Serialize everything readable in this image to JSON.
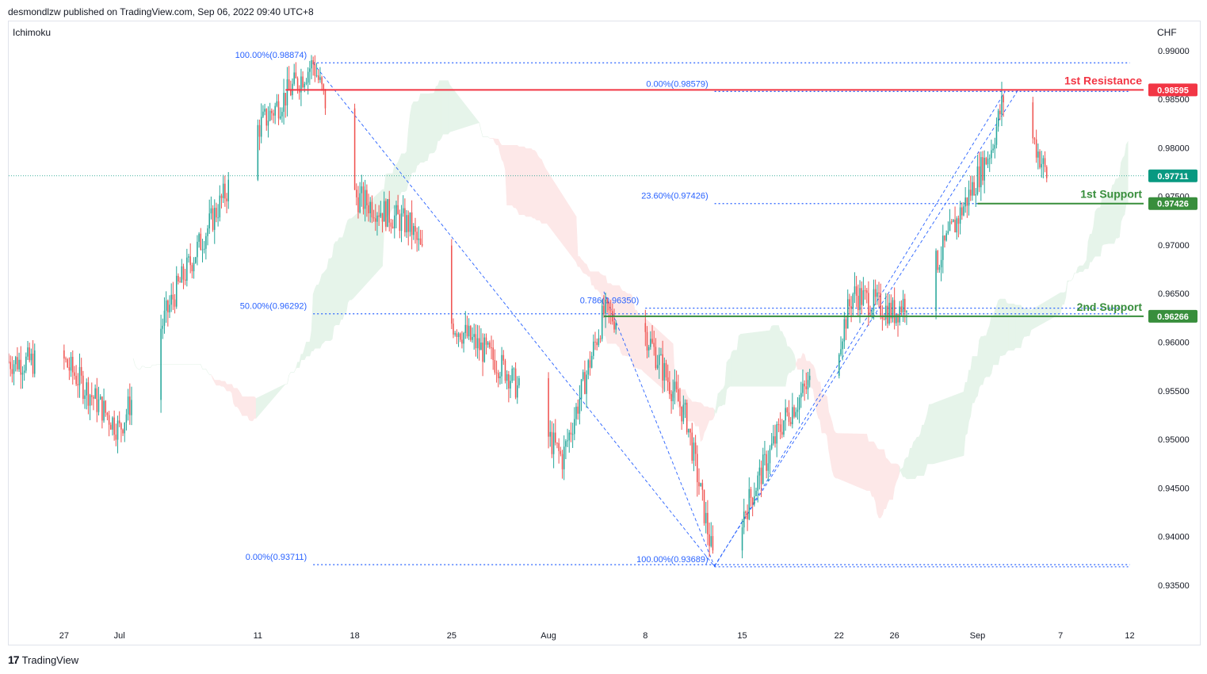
{
  "header": {
    "publisher_line": "desmondlzw published on TradingView.com, Sep 06, 2022 09:40 UTC+8",
    "indicator": "Ichimoku",
    "currency": "CHF"
  },
  "footer": {
    "brand": "TradingView",
    "logo_glyph": "17"
  },
  "colors": {
    "bull": "#26a69a",
    "bear": "#ef5350",
    "resistance": "#f23645",
    "support": "#388e3c",
    "fib": "#2962ff",
    "cloud_bull": "#e6f4ea",
    "cloud_bear": "#fde8e8",
    "price_label": "#089981"
  },
  "chart_data": {
    "type": "candlestick",
    "y_axis": {
      "range": [
        0.931,
        0.993
      ],
      "ticks": [
        "0.99000",
        "0.98500",
        "0.98000",
        "0.97500",
        "0.97000",
        "0.96500",
        "0.96000",
        "0.95500",
        "0.95000",
        "0.94500",
        "0.94000",
        "0.93500"
      ],
      "tick_values": [
        0.99,
        0.985,
        0.98,
        0.975,
        0.97,
        0.965,
        0.96,
        0.955,
        0.95,
        0.945,
        0.94,
        0.935
      ]
    },
    "x_axis": {
      "labels": [
        "27",
        "Jul",
        "11",
        "18",
        "25",
        "Aug",
        "8",
        "15",
        "22",
        "26",
        "Sep",
        "7",
        "12"
      ],
      "label_dates": [
        "2022-06-27",
        "2022-07-01",
        "2022-07-11",
        "2022-07-18",
        "2022-07-25",
        "2022-08-01",
        "2022-08-08",
        "2022-08-15",
        "2022-08-22",
        "2022-08-26",
        "2022-09-01",
        "2022-09-07",
        "2022-09-12"
      ],
      "range": [
        "2022-06-23",
        "2022-09-13"
      ]
    },
    "horizontal_levels": [
      {
        "name": "1st Resistance",
        "value": 0.98595,
        "label": "0.98595",
        "kind": "resistance"
      },
      {
        "name": "1st Support",
        "value": 0.97426,
        "label": "0.97426",
        "kind": "support"
      },
      {
        "name": "2nd Support",
        "value": 0.96266,
        "label": "0.96266",
        "kind": "support"
      }
    ],
    "current_price": {
      "value": 0.97711,
      "label": "0.97711"
    },
    "fib_labels": [
      {
        "text": "100.00%(0.98874)",
        "value": 0.98874
      },
      {
        "text": "50.00%(0.96292)",
        "value": 0.96292
      },
      {
        "text": "0.00%(0.93711)",
        "value": 0.93711
      },
      {
        "text": "100.00%(0.93689)",
        "value": 0.93689
      },
      {
        "text": "0.786(0.96350)",
        "value": 0.9635
      },
      {
        "text": "23.60%(0.97426)",
        "value": 0.97426
      },
      {
        "text": "0.00%(0.98579)",
        "value": 0.98579
      }
    ],
    "key_points": [
      {
        "date": "2022-06-27",
        "price": 0.958
      },
      {
        "date": "2022-07-01",
        "price": 0.951
      },
      {
        "date": "2022-07-05",
        "price": 0.965
      },
      {
        "date": "2022-07-11",
        "price": 0.982
      },
      {
        "date": "2022-07-15",
        "price": 0.9887
      },
      {
        "date": "2022-07-18",
        "price": 0.975
      },
      {
        "date": "2022-07-22",
        "price": 0.972
      },
      {
        "date": "2022-07-25",
        "price": 0.962
      },
      {
        "date": "2022-07-29",
        "price": 0.957
      },
      {
        "date": "2022-08-02",
        "price": 0.948
      },
      {
        "date": "2022-08-05",
        "price": 0.963
      },
      {
        "date": "2022-08-08",
        "price": 0.961
      },
      {
        "date": "2022-08-11",
        "price": 0.952
      },
      {
        "date": "2022-08-13",
        "price": 0.9369
      },
      {
        "date": "2022-08-15",
        "price": 0.942
      },
      {
        "date": "2022-08-18",
        "price": 0.952
      },
      {
        "date": "2022-08-22",
        "price": 0.96
      },
      {
        "date": "2022-08-23",
        "price": 0.965
      },
      {
        "date": "2022-08-26",
        "price": 0.963
      },
      {
        "date": "2022-08-29",
        "price": 0.968
      },
      {
        "date": "2022-08-31",
        "price": 0.974
      },
      {
        "date": "2022-09-02",
        "price": 0.98
      },
      {
        "date": "2022-09-03",
        "price": 0.9858
      },
      {
        "date": "2022-09-05",
        "price": 0.981
      },
      {
        "date": "2022-09-06",
        "price": 0.97711
      }
    ]
  }
}
